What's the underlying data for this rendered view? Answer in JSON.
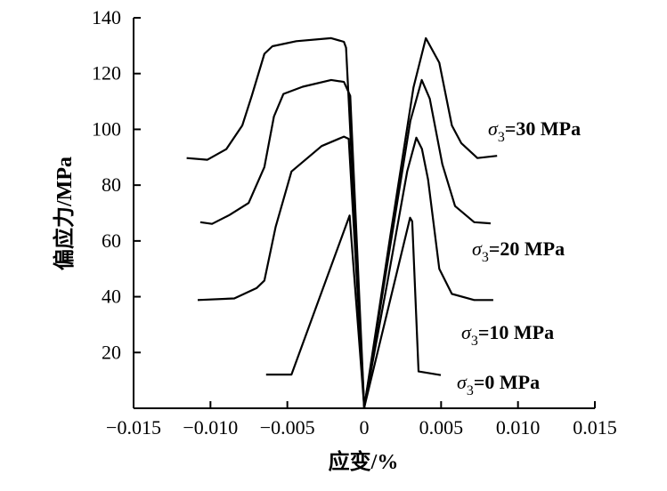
{
  "chart_data": {
    "type": "line",
    "title": "",
    "xlabel": "应变/%",
    "ylabel": "偏应力/MPa",
    "xlim": [
      -0.015,
      0.015
    ],
    "ylim": [
      0,
      140
    ],
    "xticks": [
      -0.015,
      -0.01,
      -0.005,
      0,
      0.005,
      0.01,
      0.015
    ],
    "xtick_labels": [
      "−0.015",
      "−0.010",
      "−0.005",
      "0",
      "0.005",
      "0.010",
      "0.015"
    ],
    "yticks": [
      20,
      40,
      60,
      80,
      100,
      120,
      140
    ],
    "ytick_labels": [
      "20",
      "40",
      "60",
      "80",
      "100",
      "120",
      "140"
    ],
    "grid": false,
    "line_color": "#000000",
    "series": [
      {
        "name": "σ3=0 MPa",
        "symbol": "σ",
        "sub": "3",
        "rest": "=0 MPa",
        "points": [
          [
            -0.00638,
            12.1
          ],
          [
            -0.00473,
            12.1
          ],
          [
            -0.00095,
            69.1
          ],
          [
            0,
            0.3
          ],
          [
            0.00298,
            68.3
          ],
          [
            0.00312,
            67
          ],
          [
            0.00353,
            13.2
          ],
          [
            0.00498,
            11.9
          ]
        ]
      },
      {
        "name": "σ3=10 MPa",
        "symbol": "σ",
        "sub": "3",
        "rest": "=10 MPa",
        "points": [
          [
            -0.01083,
            38.8
          ],
          [
            -0.00845,
            39.4
          ],
          [
            -0.007,
            43.1
          ],
          [
            -0.00649,
            45.8
          ],
          [
            -0.00576,
            65
          ],
          [
            -0.00473,
            84.9
          ],
          [
            -0.00277,
            94
          ],
          [
            -0.00132,
            97.4
          ],
          [
            -0.00101,
            96.6
          ],
          [
            0,
            0.3
          ],
          [
            0.0015,
            45
          ],
          [
            0.0028,
            85
          ],
          [
            0.00339,
            97
          ],
          [
            0.00375,
            93
          ],
          [
            0.00415,
            82
          ],
          [
            0.00488,
            50
          ],
          [
            0.0057,
            41
          ],
          [
            0.00715,
            38.8
          ],
          [
            0.00839,
            38.8
          ]
        ]
      },
      {
        "name": "σ3=20 MPa",
        "symbol": "σ",
        "sub": "3",
        "rest": "=20 MPa",
        "points": [
          [
            -0.01066,
            66.7
          ],
          [
            -0.0099,
            66.1
          ],
          [
            -0.00876,
            69.3
          ],
          [
            -0.00752,
            73.6
          ],
          [
            -0.00649,
            86.5
          ],
          [
            -0.00587,
            104.6
          ],
          [
            -0.00525,
            112.7
          ],
          [
            -0.004,
            115.3
          ],
          [
            -0.00215,
            117.7
          ],
          [
            -0.00132,
            117
          ],
          [
            -0.00091,
            112
          ],
          [
            0,
            0.3
          ],
          [
            0.0016,
            55
          ],
          [
            0.003,
            103
          ],
          [
            0.00374,
            117.7
          ],
          [
            0.00426,
            111
          ],
          [
            0.00508,
            87.5
          ],
          [
            0.00591,
            72.5
          ],
          [
            0.00715,
            66.7
          ],
          [
            0.00822,
            66.3
          ]
        ]
      },
      {
        "name": "σ3=30 MPa",
        "symbol": "σ",
        "sub": "3",
        "rest": "=30 MPa",
        "points": [
          [
            -0.01155,
            89.7
          ],
          [
            -0.0102,
            89.1
          ],
          [
            -0.00897,
            92.9
          ],
          [
            -0.00793,
            101.4
          ],
          [
            -0.00731,
            112.1
          ],
          [
            -0.00649,
            127.1
          ],
          [
            -0.00597,
            129.8
          ],
          [
            -0.00442,
            131.6
          ],
          [
            -0.00215,
            132.7
          ],
          [
            -0.00132,
            131.4
          ],
          [
            -0.00118,
            129.3
          ],
          [
            0,
            0.3
          ],
          [
            0.0017,
            62
          ],
          [
            0.0032,
            115
          ],
          [
            0.00401,
            132.7
          ],
          [
            0.00488,
            123.9
          ],
          [
            0.0057,
            101.4
          ],
          [
            0.00632,
            95
          ],
          [
            0.00736,
            89.7
          ],
          [
            0.00864,
            90.5
          ]
        ]
      }
    ]
  }
}
